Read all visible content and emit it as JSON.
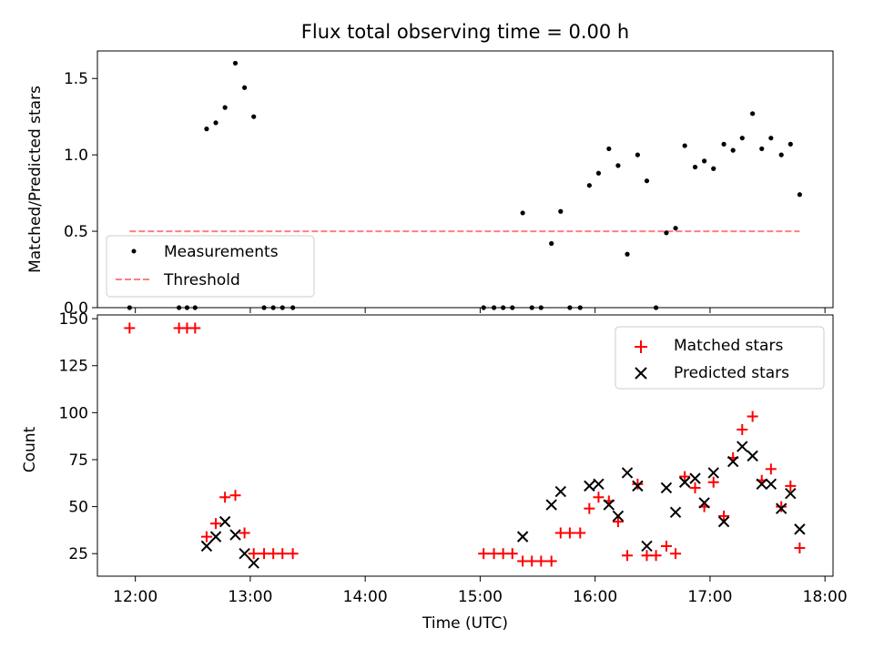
{
  "colors": {
    "measurement": "#000000",
    "threshold": "#ff7f7f",
    "matched": "#ff0000",
    "predicted": "#000000"
  },
  "chart_data": [
    {
      "type": "scatter",
      "title": "Flux total observing time = 0.00 h",
      "ylabel": "Matched/Predicted stars",
      "ylim": [
        0,
        1.68
      ],
      "xlim_hours": [
        11.67,
        18.07
      ],
      "yticks": [
        0.0,
        0.5,
        1.0,
        1.5
      ],
      "ytick_labels": [
        "0.0",
        "0.5",
        "1.0",
        "1.5"
      ],
      "legend": {
        "placement": "lower-left",
        "entries": [
          {
            "label": "Measurements",
            "marker": "dot"
          },
          {
            "label": "Threshold",
            "marker": "dashed-line"
          }
        ]
      },
      "threshold": {
        "value": 0.5,
        "x_range_hours": [
          11.95,
          17.78
        ]
      },
      "series": [
        {
          "name": "Measurements",
          "points": [
            [
              11.95,
              0
            ],
            [
              12.38,
              0
            ],
            [
              12.45,
              0
            ],
            [
              12.52,
              0
            ],
            [
              12.62,
              1.17
            ],
            [
              12.7,
              1.21
            ],
            [
              12.78,
              1.31
            ],
            [
              12.87,
              1.6
            ],
            [
              12.95,
              1.44
            ],
            [
              13.03,
              1.25
            ],
            [
              13.12,
              0
            ],
            [
              13.2,
              0
            ],
            [
              13.28,
              0
            ],
            [
              13.37,
              0
            ],
            [
              15.03,
              0
            ],
            [
              15.12,
              0
            ],
            [
              15.2,
              0
            ],
            [
              15.28,
              0
            ],
            [
              15.37,
              0.62
            ],
            [
              15.45,
              0
            ],
            [
              15.53,
              0
            ],
            [
              15.62,
              0.42
            ],
            [
              15.7,
              0.63
            ],
            [
              15.78,
              0
            ],
            [
              15.87,
              0
            ],
            [
              15.95,
              0.8
            ],
            [
              16.03,
              0.88
            ],
            [
              16.12,
              1.04
            ],
            [
              16.2,
              0.93
            ],
            [
              16.28,
              0.35
            ],
            [
              16.37,
              1.0
            ],
            [
              16.45,
              0.83
            ],
            [
              16.53,
              0
            ],
            [
              16.62,
              0.49
            ],
            [
              16.7,
              0.52
            ],
            [
              16.78,
              1.06
            ],
            [
              16.87,
              0.92
            ],
            [
              16.95,
              0.96
            ],
            [
              17.03,
              0.91
            ],
            [
              17.12,
              1.07
            ],
            [
              17.2,
              1.03
            ],
            [
              17.28,
              1.11
            ],
            [
              17.37,
              1.27
            ],
            [
              17.45,
              1.04
            ],
            [
              17.53,
              1.11
            ],
            [
              17.62,
              1.0
            ],
            [
              17.7,
              1.07
            ],
            [
              17.78,
              0.74
            ]
          ]
        }
      ]
    },
    {
      "type": "scatter",
      "xlabel": "Time (UTC)",
      "ylabel": "Count",
      "ylim": [
        13,
        152
      ],
      "xlim_hours": [
        11.67,
        18.07
      ],
      "yticks": [
        25,
        50,
        75,
        100,
        125,
        150
      ],
      "ytick_labels": [
        "25",
        "50",
        "75",
        "100",
        "125",
        "150"
      ],
      "xticks_hours": [
        12,
        13,
        14,
        15,
        16,
        17,
        18
      ],
      "xtick_labels": [
        "12:00",
        "13:00",
        "14:00",
        "15:00",
        "16:00",
        "17:00",
        "18:00"
      ],
      "legend": {
        "placement": "top-right",
        "entries": [
          {
            "label": "Matched stars",
            "marker": "plus"
          },
          {
            "label": "Predicted stars",
            "marker": "x"
          }
        ]
      },
      "series": [
        {
          "name": "Matched stars",
          "points": [
            [
              11.95,
              145
            ],
            [
              12.38,
              145
            ],
            [
              12.45,
              145
            ],
            [
              12.52,
              145
            ],
            [
              12.62,
              34
            ],
            [
              12.7,
              41
            ],
            [
              12.78,
              55
            ],
            [
              12.87,
              56
            ],
            [
              12.95,
              36
            ],
            [
              13.03,
              25
            ],
            [
              13.12,
              25
            ],
            [
              13.2,
              25
            ],
            [
              13.28,
              25
            ],
            [
              13.37,
              25
            ],
            [
              15.03,
              25
            ],
            [
              15.12,
              25
            ],
            [
              15.2,
              25
            ],
            [
              15.28,
              25
            ],
            [
              15.37,
              21
            ],
            [
              15.45,
              21
            ],
            [
              15.53,
              21
            ],
            [
              15.62,
              21
            ],
            [
              15.7,
              36
            ],
            [
              15.78,
              36
            ],
            [
              15.87,
              36
            ],
            [
              15.95,
              49
            ],
            [
              16.03,
              55
            ],
            [
              16.12,
              53
            ],
            [
              16.2,
              42
            ],
            [
              16.28,
              24
            ],
            [
              16.37,
              62
            ],
            [
              16.45,
              24
            ],
            [
              16.53,
              24
            ],
            [
              16.62,
              29
            ],
            [
              16.7,
              25
            ],
            [
              16.78,
              66
            ],
            [
              16.87,
              60
            ],
            [
              16.95,
              50
            ],
            [
              17.03,
              63
            ],
            [
              17.12,
              45
            ],
            [
              17.2,
              76
            ],
            [
              17.28,
              91
            ],
            [
              17.37,
              98
            ],
            [
              17.45,
              64
            ],
            [
              17.53,
              70
            ],
            [
              17.62,
              50
            ],
            [
              17.7,
              61
            ],
            [
              17.78,
              28
            ]
          ]
        },
        {
          "name": "Predicted stars",
          "points": [
            [
              12.62,
              29
            ],
            [
              12.7,
              34
            ],
            [
              12.78,
              42
            ],
            [
              12.87,
              35
            ],
            [
              12.95,
              25
            ],
            [
              13.03,
              20
            ],
            [
              15.37,
              34
            ],
            [
              15.62,
              51
            ],
            [
              15.7,
              58
            ],
            [
              15.95,
              61
            ],
            [
              16.03,
              62
            ],
            [
              16.12,
              51
            ],
            [
              16.2,
              45
            ],
            [
              16.28,
              68
            ],
            [
              16.37,
              61
            ],
            [
              16.45,
              29
            ],
            [
              16.62,
              60
            ],
            [
              16.7,
              47
            ],
            [
              16.78,
              63
            ],
            [
              16.87,
              65
            ],
            [
              16.95,
              52
            ],
            [
              17.03,
              68
            ],
            [
              17.12,
              42
            ],
            [
              17.2,
              74
            ],
            [
              17.28,
              82
            ],
            [
              17.37,
              77
            ],
            [
              17.45,
              62
            ],
            [
              17.53,
              62
            ],
            [
              17.62,
              49
            ],
            [
              17.7,
              57
            ],
            [
              17.78,
              38
            ]
          ]
        }
      ]
    }
  ]
}
